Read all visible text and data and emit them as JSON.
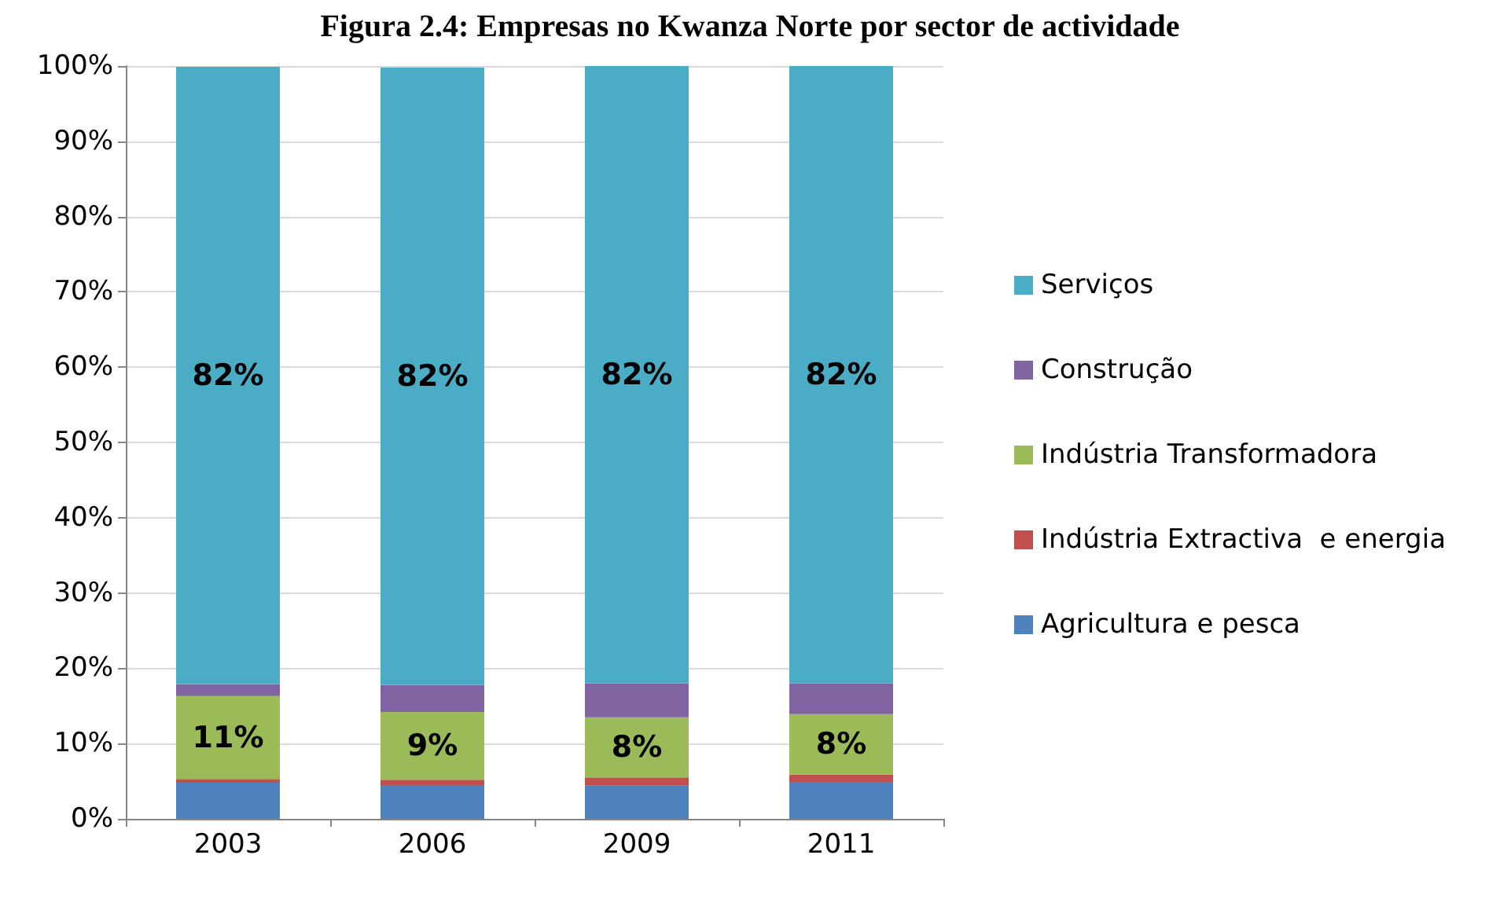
{
  "chart_data": {
    "type": "bar",
    "title": "Figura 2.4: Empresas no Kwanza Norte por sector de actividade",
    "categories": [
      "2003",
      "2006",
      "2009",
      "2011"
    ],
    "stacked": true,
    "series": [
      {
        "name": "Agricultura e pesca",
        "color": "#4f81bd",
        "values": [
          4.8,
          4.5,
          4.4,
          4.9
        ]
      },
      {
        "name": "Indústria Extractiva  e energia",
        "color": "#c0504d",
        "values": [
          0.5,
          0.7,
          1.1,
          1.0
        ]
      },
      {
        "name": "Indústria Transformadora",
        "color": "#9bbb59",
        "values": [
          11,
          9,
          8,
          8
        ],
        "value_labels": [
          "11%",
          "9%",
          "8%",
          "8%"
        ]
      },
      {
        "name": "Construção",
        "color": "#8064a2",
        "values": [
          1.6,
          3.6,
          4.5,
          4.1
        ]
      },
      {
        "name": "Serviços",
        "color": "#4bacc6",
        "values": [
          82,
          82,
          82,
          82
        ],
        "value_labels": [
          "82%",
          "82%",
          "82%",
          "82%"
        ]
      }
    ],
    "ylim": [
      0,
      100
    ],
    "yticks": [
      {
        "value": 0,
        "label": "0%"
      },
      {
        "value": 10,
        "label": "10%"
      },
      {
        "value": 20,
        "label": "20%"
      },
      {
        "value": 30,
        "label": "30%"
      },
      {
        "value": 40,
        "label": "40%"
      },
      {
        "value": 50,
        "label": "50%"
      },
      {
        "value": 60,
        "label": "60%"
      },
      {
        "value": 70,
        "label": "70%"
      },
      {
        "value": 80,
        "label": "80%"
      },
      {
        "value": 90,
        "label": "90%"
      },
      {
        "value": 100,
        "label": "100%"
      }
    ],
    "grid": "y",
    "legend": "right"
  }
}
